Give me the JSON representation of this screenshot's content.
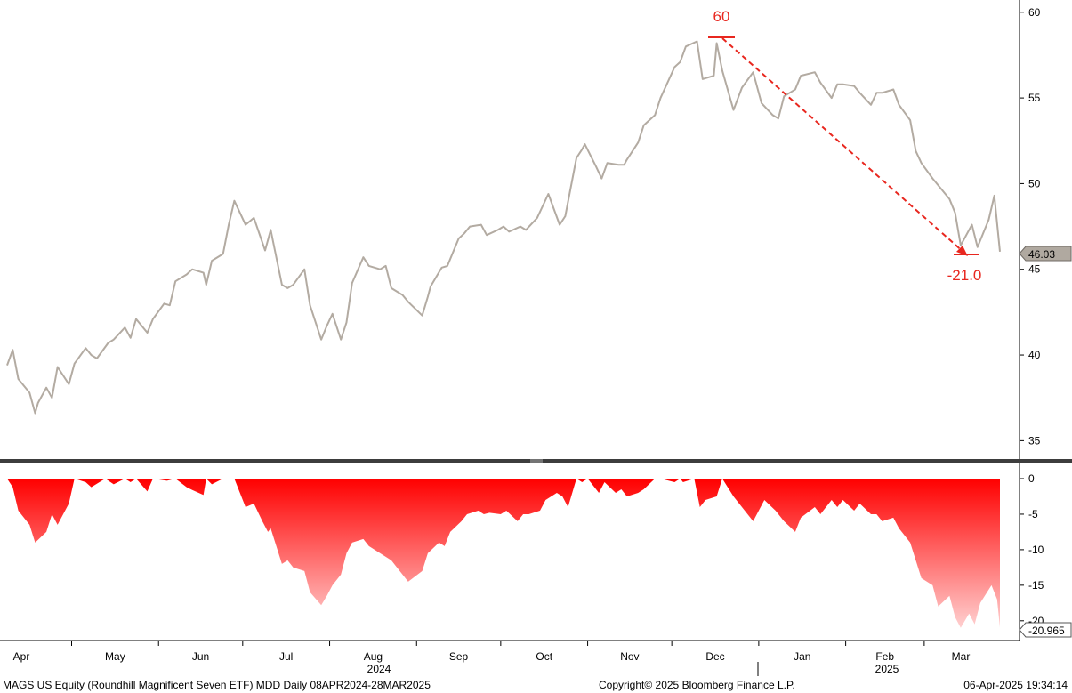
{
  "footer": {
    "left": "MAGS US Equity (Roundhill Magnificent Seven ETF) MDD  Daily 08APR2024-28MAR2025",
    "center": "Copyright© 2025 Bloomberg Finance L.P.",
    "right": "06-Apr-2025 19:34:14"
  },
  "colors": {
    "price_line": "#b3aba2",
    "drawdown": "#ff0000",
    "annotation": "#e8271f",
    "last_tag_bg": "#b0a9a0"
  },
  "chart_data": [
    {
      "type": "line",
      "series_name": "MAGS US Equity",
      "x_axis": {
        "months": [
          "Apr",
          "May",
          "Jun",
          "Jul",
          "Aug",
          "Sep",
          "Oct",
          "Nov",
          "Dec",
          "Jan",
          "Feb",
          "Mar"
        ],
        "years": [
          "2024",
          "2025"
        ]
      },
      "y_ticks": [
        35,
        40,
        45,
        50,
        55,
        60
      ],
      "ylim": [
        34.5,
        60.3
      ],
      "grid": false,
      "x": [
        "2024-04-08",
        "2024-04-10",
        "2024-04-12",
        "2024-04-16",
        "2024-04-18",
        "2024-04-19",
        "2024-04-22",
        "2024-04-24",
        "2024-04-26",
        "2024-04-30",
        "2024-05-02",
        "2024-05-06",
        "2024-05-08",
        "2024-05-10",
        "2024-05-14",
        "2024-05-16",
        "2024-05-20",
        "2024-05-22",
        "2024-05-24",
        "2024-05-28",
        "2024-05-30",
        "2024-06-03",
        "2024-06-05",
        "2024-06-07",
        "2024-06-11",
        "2024-06-13",
        "2024-06-17",
        "2024-06-18",
        "2024-06-20",
        "2024-06-24",
        "2024-06-26",
        "2024-06-28",
        "2024-07-02",
        "2024-07-05",
        "2024-07-09",
        "2024-07-11",
        "2024-07-15",
        "2024-07-17",
        "2024-07-19",
        "2024-07-23",
        "2024-07-25",
        "2024-07-29",
        "2024-07-31",
        "2024-08-02",
        "2024-08-05",
        "2024-08-07",
        "2024-08-09",
        "2024-08-13",
        "2024-08-15",
        "2024-08-19",
        "2024-08-21",
        "2024-08-23",
        "2024-08-27",
        "2024-08-29",
        "2024-09-03",
        "2024-09-05",
        "2024-09-06",
        "2024-09-10",
        "2024-09-12",
        "2024-09-16",
        "2024-09-18",
        "2024-09-20",
        "2024-09-24",
        "2024-09-26",
        "2024-09-30",
        "2024-10-02",
        "2024-10-04",
        "2024-10-08",
        "2024-10-10",
        "2024-10-14",
        "2024-10-16",
        "2024-10-18",
        "2024-10-22",
        "2024-10-24",
        "2024-10-28",
        "2024-10-30",
        "2024-10-31",
        "2024-11-04",
        "2024-11-06",
        "2024-11-08",
        "2024-11-12",
        "2024-11-14",
        "2024-11-15",
        "2024-11-19",
        "2024-11-21",
        "2024-11-25",
        "2024-11-27",
        "2024-12-02",
        "2024-12-04",
        "2024-12-06",
        "2024-12-10",
        "2024-12-12",
        "2024-12-16",
        "2024-12-17",
        "2024-12-19",
        "2024-12-23",
        "2024-12-26",
        "2024-12-30",
        "2025-01-02",
        "2025-01-06",
        "2025-01-08",
        "2025-01-10",
        "2025-01-14",
        "2025-01-16",
        "2025-01-21",
        "2025-01-23",
        "2025-01-27",
        "2025-01-29",
        "2025-01-31",
        "2025-02-04",
        "2025-02-06",
        "2025-02-10",
        "2025-02-12",
        "2025-02-14",
        "2025-02-18",
        "2025-02-20",
        "2025-02-24",
        "2025-02-26",
        "2025-02-28",
        "2025-03-04",
        "2025-03-06",
        "2025-03-10",
        "2025-03-12",
        "2025-03-14",
        "2025-03-18",
        "2025-03-20",
        "2025-03-24",
        "2025-03-26",
        "2025-03-28"
      ],
      "values": [
        39.4,
        40.3,
        38.6,
        37.8,
        36.6,
        37.2,
        38.1,
        37.5,
        39.3,
        38.3,
        39.5,
        40.4,
        40.0,
        39.8,
        40.7,
        40.9,
        41.6,
        41.0,
        42.1,
        41.3,
        42.1,
        43.0,
        42.9,
        44.3,
        44.7,
        45.0,
        44.8,
        44.1,
        45.5,
        45.9,
        47.6,
        49.0,
        47.6,
        48.0,
        46.1,
        47.3,
        44.1,
        43.9,
        44.1,
        45.0,
        42.9,
        40.9,
        41.7,
        42.4,
        40.9,
        41.9,
        44.2,
        45.7,
        45.2,
        45.0,
        45.2,
        43.9,
        43.5,
        43.1,
        42.3,
        43.4,
        44.0,
        45.1,
        45.2,
        46.8,
        47.1,
        47.5,
        47.6,
        47.0,
        47.3,
        47.5,
        47.2,
        47.5,
        47.3,
        48.0,
        48.7,
        49.4,
        47.6,
        48.1,
        51.5,
        52.0,
        52.3,
        51.0,
        50.3,
        51.2,
        51.1,
        51.1,
        51.4,
        52.4,
        53.4,
        54.0,
        55.0,
        56.8,
        57.1,
        58.0,
        58.3,
        56.1,
        56.3,
        58.2,
        56.6,
        54.3,
        55.6,
        56.5,
        54.7,
        54.0,
        53.8,
        55.1,
        55.5,
        56.3,
        56.5,
        55.9,
        55.0,
        55.8,
        55.8,
        55.7,
        55.3,
        54.6,
        55.3,
        55.3,
        55.5,
        54.6,
        53.7,
        51.9,
        51.2,
        50.3,
        49.9,
        49.1,
        48.3,
        46.4,
        47.6,
        46.3,
        47.9,
        49.3,
        46.03
      ],
      "last_value_label": "46.03",
      "annotations": {
        "peak_label": "60",
        "drawdown_label": "-21.0"
      }
    },
    {
      "type": "area",
      "series_name": "MDD",
      "y_ticks": [
        0,
        -5,
        -10,
        -15,
        -20
      ],
      "ylim": [
        -21.7,
        1.4
      ],
      "x": [
        "2024-04-08",
        "2024-04-10",
        "2024-04-12",
        "2024-04-16",
        "2024-04-18",
        "2024-04-22",
        "2024-04-24",
        "2024-04-26",
        "2024-04-30",
        "2024-05-02",
        "2024-05-06",
        "2024-05-08",
        "2024-05-13",
        "2024-05-16",
        "2024-05-20",
        "2024-05-22",
        "2024-05-24",
        "2024-05-28",
        "2024-05-30",
        "2024-06-04",
        "2024-06-07",
        "2024-06-11",
        "2024-06-13",
        "2024-06-17",
        "2024-06-18",
        "2024-06-20",
        "2024-06-24",
        "2024-06-26",
        "2024-06-28",
        "2024-07-02",
        "2024-07-05",
        "2024-07-08",
        "2024-07-10",
        "2024-07-11",
        "2024-07-15",
        "2024-07-17",
        "2024-07-19",
        "2024-07-23",
        "2024-07-25",
        "2024-07-29",
        "2024-07-31",
        "2024-08-02",
        "2024-08-05",
        "2024-08-07",
        "2024-08-09",
        "2024-08-13",
        "2024-08-15",
        "2024-08-19",
        "2024-08-21",
        "2024-08-23",
        "2024-08-27",
        "2024-08-29",
        "2024-09-03",
        "2024-09-05",
        "2024-09-09",
        "2024-09-11",
        "2024-09-13",
        "2024-09-17",
        "2024-09-19",
        "2024-09-23",
        "2024-09-25",
        "2024-09-27",
        "2024-10-01",
        "2024-10-03",
        "2024-10-07",
        "2024-10-09",
        "2024-10-11",
        "2024-10-15",
        "2024-10-17",
        "2024-10-21",
        "2024-10-23",
        "2024-10-25",
        "2024-10-28",
        "2024-10-30",
        "2024-11-01",
        "2024-11-05",
        "2024-11-07",
        "2024-11-11",
        "2024-11-13",
        "2024-11-15",
        "2024-11-19",
        "2024-11-21",
        "2024-11-25",
        "2024-11-27",
        "2024-12-02",
        "2024-12-04",
        "2024-12-05",
        "2024-12-09",
        "2024-12-11",
        "2024-12-13",
        "2024-12-17",
        "2024-12-19",
        "2024-12-23",
        "2024-12-26",
        "2024-12-30",
        "2025-01-03",
        "2025-01-07",
        "2025-01-10",
        "2025-01-14",
        "2025-01-16",
        "2025-01-21",
        "2025-01-23",
        "2025-01-27",
        "2025-01-29",
        "2025-01-31",
        "2025-02-04",
        "2025-02-06",
        "2025-02-10",
        "2025-02-12",
        "2025-02-14",
        "2025-02-18",
        "2025-02-20",
        "2025-02-24",
        "2025-02-26",
        "2025-02-28",
        "2025-03-04",
        "2025-03-06",
        "2025-03-10",
        "2025-03-12",
        "2025-03-14",
        "2025-03-17",
        "2025-03-19",
        "2025-03-21",
        "2025-03-25",
        "2025-03-27",
        "2025-03-28"
      ],
      "values": [
        0,
        -1.2,
        -4.5,
        -6.5,
        -9.0,
        -7.5,
        -5.0,
        -6.5,
        -3.5,
        0,
        -0.5,
        -1.2,
        0,
        -0.8,
        0,
        -0.5,
        0,
        -1.8,
        0,
        -0.3,
        0,
        -1.2,
        -1.6,
        -2.3,
        0,
        -0.8,
        0,
        0,
        0,
        -4.0,
        -3.5,
        -6.0,
        -7.5,
        -7.0,
        -12.0,
        -11.5,
        -12.5,
        -13.0,
        -16.0,
        -17.8,
        -16.5,
        -15.0,
        -13.5,
        -10.5,
        -9.0,
        -8.5,
        -9.5,
        -10.5,
        -11.0,
        -11.5,
        -13.5,
        -14.5,
        -13.0,
        -10.5,
        -9.0,
        -9.5,
        -7.5,
        -6.0,
        -5.0,
        -4.5,
        -5.0,
        -4.8,
        -5.0,
        -4.5,
        -6.0,
        -5.0,
        -5.0,
        -4.5,
        -3.0,
        -2.0,
        -2.5,
        -4.0,
        0,
        -0.5,
        0,
        -2.0,
        -0.5,
        -2.0,
        -1.5,
        -2.5,
        -2.0,
        -1.5,
        0,
        0,
        -0.5,
        0,
        -0.5,
        0,
        -4.0,
        -3.0,
        -2.5,
        0,
        -2.5,
        -4.0,
        -6.0,
        -3.0,
        -4.5,
        -6.0,
        -7.5,
        -5.5,
        -4.0,
        -5.0,
        -3.0,
        -4.0,
        -3.0,
        -4.5,
        -3.5,
        -5.0,
        -5.0,
        -6.0,
        -5.5,
        -7.0,
        -9.0,
        -11.5,
        -14.0,
        -15.0,
        -18.0,
        -16.5,
        -19.5,
        -21.0,
        -19.0,
        -20.5,
        -17.5,
        -15.0,
        -17.0,
        -20.965
      ],
      "last_value_label": "-20.965"
    }
  ]
}
